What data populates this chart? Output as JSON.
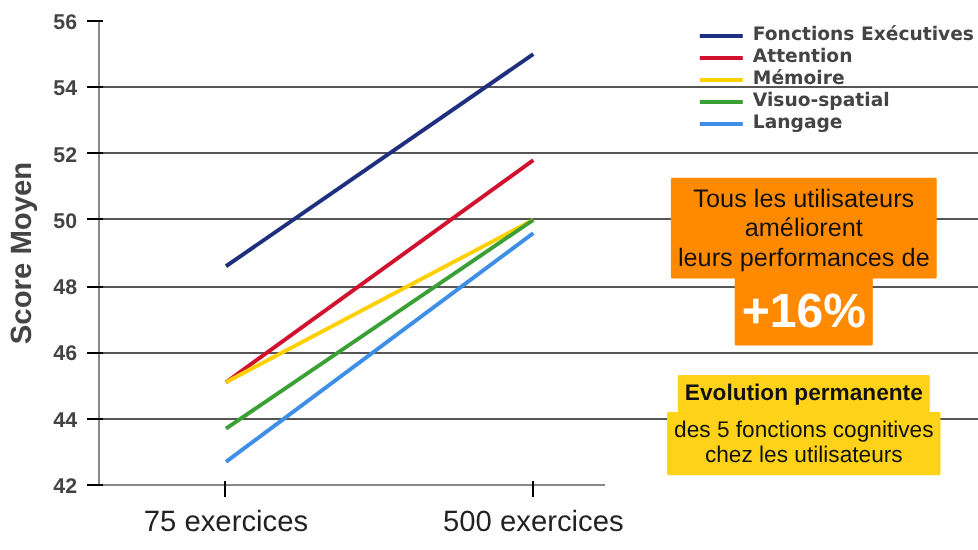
{
  "chart_data": {
    "type": "line",
    "ylabel": "Score Moyen",
    "categories": [
      "75 exercices",
      "500 exercices"
    ],
    "series": [
      {
        "name": "Fonctions Exécutives",
        "color": "#1f2f7f",
        "values": [
          48.6,
          55
        ]
      },
      {
        "name": "Attention",
        "color": "#d0122f",
        "values": [
          45.1,
          51.8
        ]
      },
      {
        "name": "Mémoire",
        "color": "#ffd000",
        "values": [
          45.1,
          50
        ]
      },
      {
        "name": "Visuo-spatial",
        "color": "#3aa035",
        "values": [
          43.7,
          50
        ]
      },
      {
        "name": "Langage",
        "color": "#3d8ee6",
        "values": [
          42.7,
          49.6
        ]
      }
    ],
    "ylim": [
      42,
      56
    ],
    "yticks": [
      42,
      44,
      46,
      48,
      50,
      52,
      54,
      56
    ],
    "grid": "y",
    "legend": "top right",
    "marker": "none",
    "line_style": "solid",
    "annotations": [
      "Tous les utilisateurs\naméliorent\nleurs performances de",
      "+16%",
      "Evolution permanente",
      "des 5 fonctions cognitives\nchez les utilisateurs"
    ]
  }
}
